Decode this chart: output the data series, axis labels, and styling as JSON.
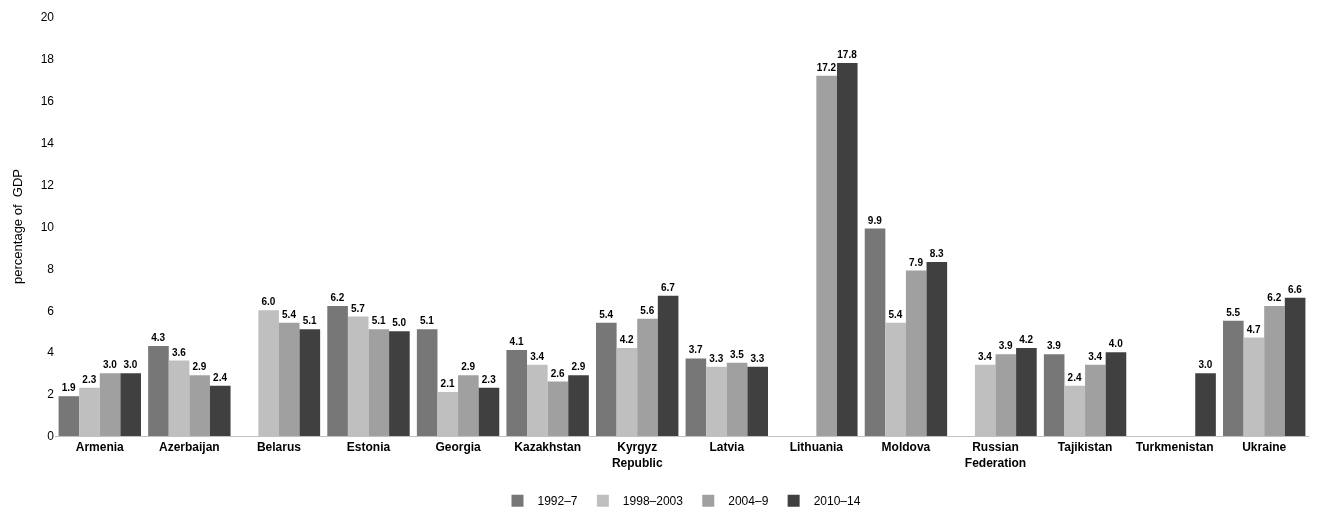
{
  "chart_data": {
    "type": "bar",
    "ylabel": "percentage of  GDP",
    "categories": [
      "Armenia",
      "Azerbaijan",
      "Belarus",
      "Estonia",
      "Georgia",
      "Kazakhstan",
      "Kyrgyz\nRepublic",
      "Latvia",
      "Lithuania",
      "Moldova",
      "Russian\nFederation",
      "Tajikistan",
      "Turkmenistan",
      "Ukraine"
    ],
    "series": [
      {
        "name": "1992–7",
        "color": "#777777",
        "values": [
          1.9,
          4.3,
          null,
          6.2,
          5.1,
          4.1,
          5.4,
          3.7,
          null,
          9.9,
          null,
          3.9,
          null,
          5.5
        ],
        "value_labels": [
          "1.9",
          "4.3",
          null,
          "6.2",
          "5.1",
          "4.1",
          "5.4",
          "3.7",
          null,
          "9.9",
          null,
          "3.9",
          null,
          "5.5"
        ]
      },
      {
        "name": "1998–2003",
        "color": "#bfbfbf",
        "values": [
          2.3,
          3.6,
          6.0,
          5.7,
          2.1,
          3.4,
          4.2,
          3.3,
          null,
          5.4,
          3.4,
          2.4,
          null,
          4.7
        ],
        "value_labels": [
          "2.3",
          "3.6",
          "6.0",
          "5.7",
          "2.1",
          "3.4",
          "4.2",
          "3.3",
          null,
          "5.4",
          "3.4",
          "2.4",
          null,
          "4.7"
        ]
      },
      {
        "name": "2004–9",
        "color": "#a0a0a0",
        "values": [
          3.0,
          2.9,
          5.4,
          5.1,
          2.9,
          2.6,
          5.6,
          3.5,
          17.2,
          7.9,
          3.9,
          3.4,
          null,
          6.2
        ],
        "value_labels": [
          "3.0",
          "2.9",
          "5.4",
          "5.1",
          "2.9",
          "2.6",
          "5.6",
          "3.5",
          "17.2",
          "7.9",
          "3.9",
          "3.4",
          null,
          "6.2"
        ]
      },
      {
        "name": "2010–14",
        "color": "#404040",
        "values": [
          3.0,
          2.4,
          5.1,
          5.0,
          2.3,
          2.9,
          6.7,
          3.3,
          17.8,
          8.3,
          4.2,
          4.0,
          3.0,
          6.6
        ],
        "value_labels": [
          "3.0",
          "2.4",
          "5.1",
          "5.0",
          "2.3",
          "2.9",
          "6.7",
          "3.3",
          "17.8",
          "8.3",
          "4.2",
          "4.0",
          "3.0",
          "6.6"
        ]
      }
    ],
    "ylim": [
      0,
      20
    ],
    "yticks": [
      0,
      2,
      4,
      6,
      8,
      10,
      12,
      14,
      16,
      18,
      20
    ],
    "grid": false,
    "legend": "bottom"
  }
}
